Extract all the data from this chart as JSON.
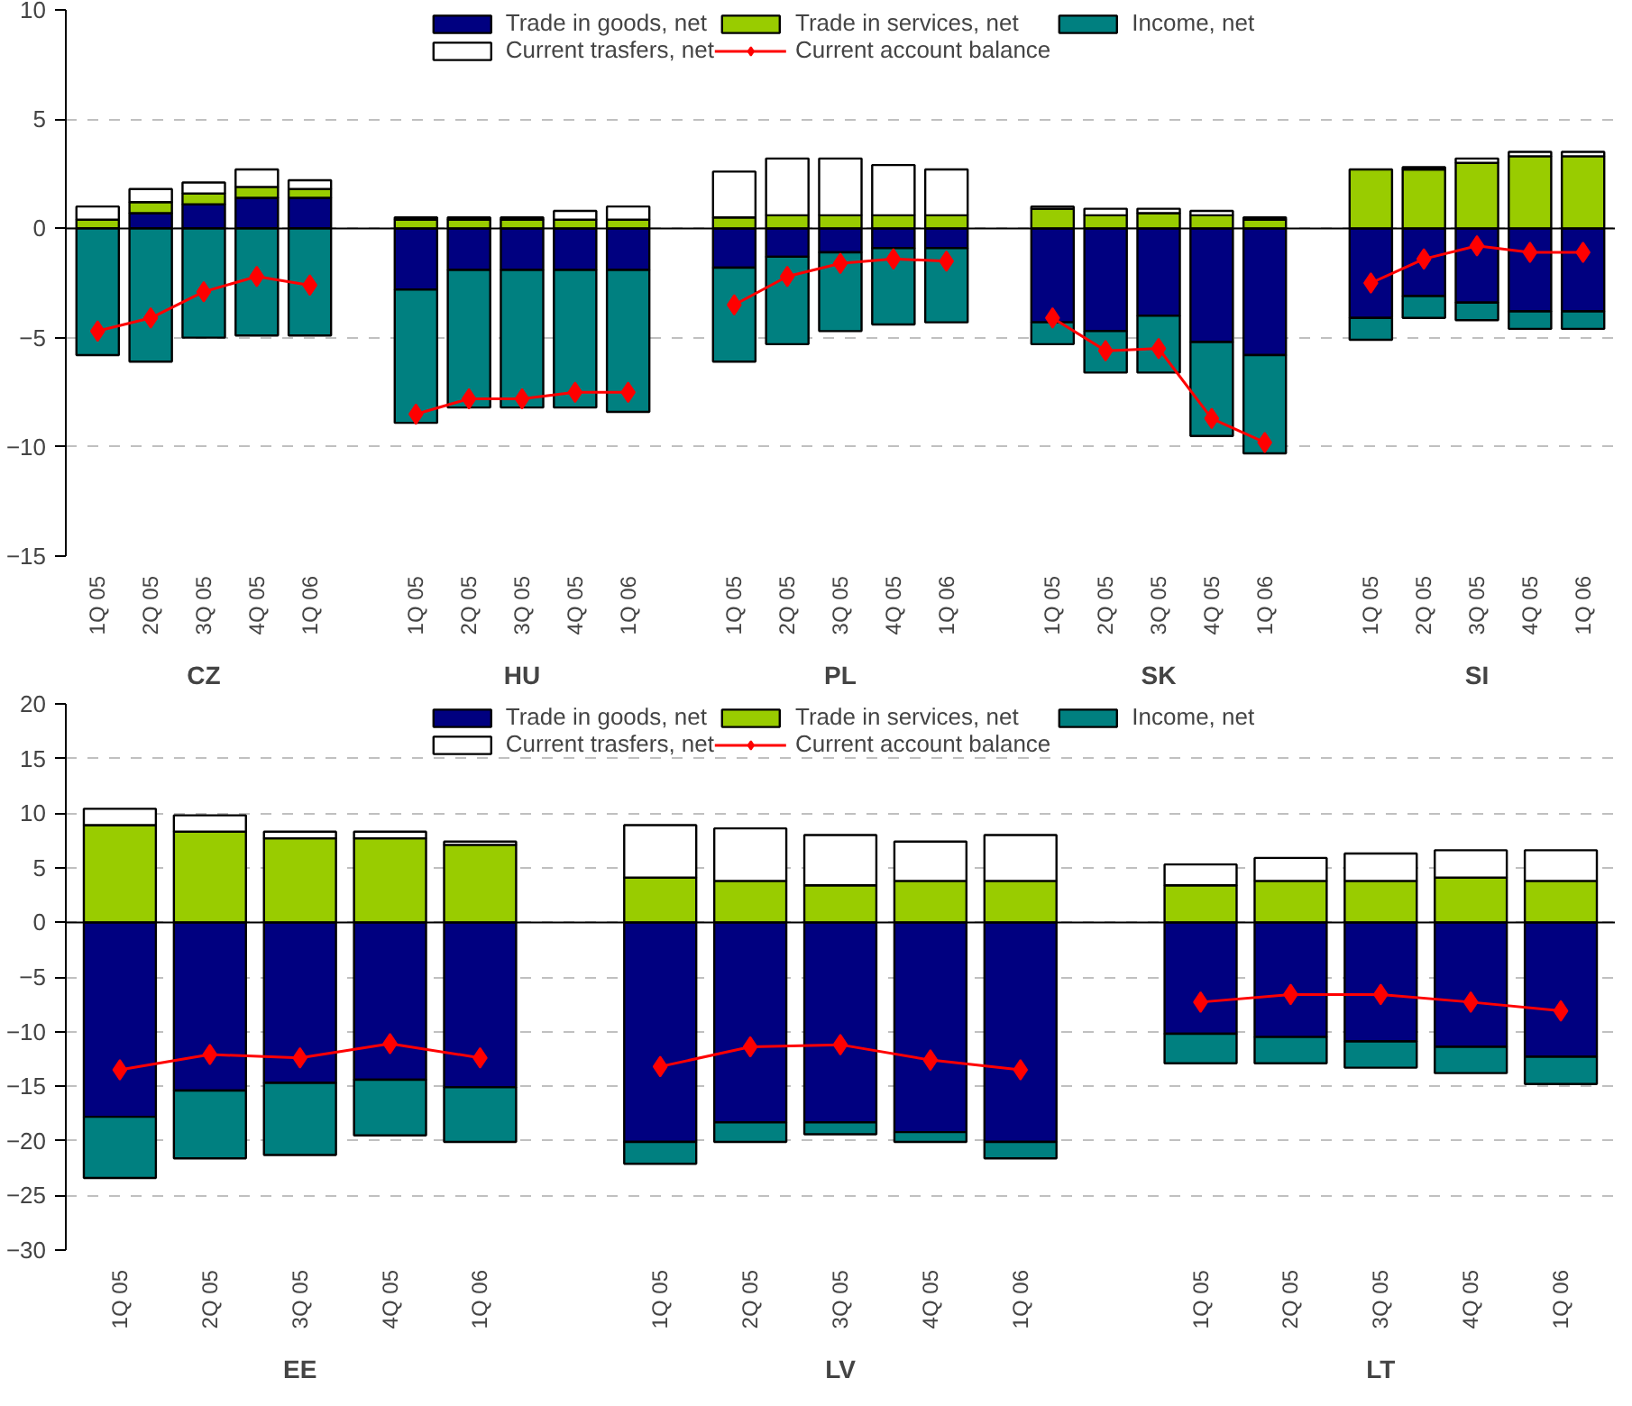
{
  "chart_data": [
    {
      "type": "bar",
      "stacked": true,
      "categories": [
        "1Q 05",
        "2Q 05",
        "3Q 05",
        "4Q 05",
        "1Q 06",
        null,
        "1Q 05",
        "2Q 05",
        "3Q 05",
        "4Q 05",
        "1Q 06",
        null,
        "1Q 05",
        "2Q 05",
        "3Q 05",
        "4Q 05",
        "1Q 06",
        null,
        "1Q 05",
        "2Q 05",
        "3Q 05",
        "4Q 05",
        "1Q 06",
        null,
        "1Q 05",
        "2Q 05",
        "3Q 05",
        "4Q 05",
        "1Q 06"
      ],
      "annotations": [
        "CZ",
        "HU",
        "PL",
        "SK",
        "SI"
      ],
      "ylim": [
        -15,
        10
      ],
      "yticks": [
        -15,
        -10,
        -5,
        0,
        5,
        10
      ],
      "grid": "y",
      "legend": "top",
      "series": [
        {
          "name": "Trade in goods, net",
          "color": "#000080",
          "values": [
            null,
            0.7,
            1.1,
            1.4,
            1.4,
            null,
            -2.8,
            -1.9,
            -1.9,
            -1.9,
            -1.9,
            null,
            -1.8,
            -1.3,
            -1.1,
            -0.9,
            -0.9,
            null,
            -4.3,
            -4.7,
            -4.0,
            -5.2,
            -5.8,
            null,
            -4.1,
            -3.1,
            -3.4,
            -3.8,
            -3.8
          ]
        },
        {
          "name": "Trade in services, net",
          "color": "#99cc00",
          "values": [
            0.4,
            0.5,
            0.5,
            0.5,
            0.4,
            null,
            0.4,
            0.4,
            0.4,
            0.4,
            0.4,
            null,
            0.5,
            0.6,
            0.6,
            0.6,
            0.6,
            null,
            0.9,
            0.6,
            0.7,
            0.6,
            0.4,
            null,
            2.7,
            2.7,
            3.0,
            3.3,
            3.3
          ]
        },
        {
          "name": "Income, net",
          "color": "#008080",
          "values": [
            -5.8,
            -6.1,
            -5.0,
            -4.9,
            -4.9,
            null,
            -6.1,
            -6.3,
            -6.3,
            -6.3,
            -6.5,
            null,
            -4.3,
            -4.0,
            -3.6,
            -3.5,
            -3.4,
            null,
            -1.0,
            -1.9,
            -2.6,
            -4.3,
            -4.5,
            null,
            -1.0,
            -1.0,
            -0.8,
            -0.8,
            -0.8
          ]
        },
        {
          "name": "Current trasfers, net",
          "color": "#ffffff",
          "values": [
            0.6,
            0.6,
            0.5,
            0.8,
            0.4,
            null,
            0.1,
            0.1,
            0.1,
            0.4,
            0.6,
            null,
            2.1,
            2.6,
            2.6,
            2.3,
            2.1,
            null,
            0.1,
            0.3,
            0.2,
            0.2,
            0.1,
            null,
            null,
            0.1,
            0.2,
            0.2,
            0.2
          ]
        },
        {
          "name": "Current account balance",
          "color": "#ff0000",
          "type": "line",
          "marker": "diamond",
          "values": [
            -4.7,
            -4.1,
            -2.9,
            -2.2,
            -2.6,
            null,
            -8.5,
            -7.8,
            -7.8,
            -7.5,
            -7.5,
            null,
            -3.5,
            -2.2,
            -1.6,
            -1.4,
            -1.5,
            null,
            -4.1,
            -5.6,
            -5.5,
            -8.7,
            -9.8,
            null,
            -2.5,
            -1.4,
            -0.8,
            -1.1,
            -1.1
          ]
        }
      ]
    },
    {
      "type": "bar",
      "stacked": true,
      "categories": [
        "1Q 05",
        "2Q 05",
        "3Q 05",
        "4Q 05",
        "1Q 06",
        null,
        "1Q 05",
        "2Q 05",
        "3Q 05",
        "4Q 05",
        "1Q 06",
        null,
        "1Q 05",
        "2Q 05",
        "3Q 05",
        "4Q 05",
        "1Q 06"
      ],
      "annotations": [
        "EE",
        "LV",
        "LT"
      ],
      "ylim": [
        -30,
        20
      ],
      "yticks": [
        -30,
        -25,
        -20,
        -15,
        -10,
        -5,
        0,
        5,
        10,
        15,
        20
      ],
      "grid": "y",
      "legend": "top",
      "series": [
        {
          "name": "Trade in goods, net",
          "color": "#000080",
          "values": [
            -17.8,
            -15.4,
            -14.7,
            -14.4,
            -15.1,
            null,
            -20.1,
            -18.3,
            -18.3,
            -19.2,
            -20.1,
            null,
            -10.2,
            -10.5,
            -10.9,
            -11.4,
            -12.3
          ]
        },
        {
          "name": "Trade in services, net",
          "color": "#99cc00",
          "values": [
            8.9,
            8.3,
            7.7,
            7.7,
            7.1,
            null,
            4.1,
            3.8,
            3.4,
            3.8,
            3.8,
            null,
            3.4,
            3.8,
            3.8,
            4.1,
            3.8
          ]
        },
        {
          "name": "Income, net",
          "color": "#008080",
          "values": [
            -5.6,
            -6.2,
            -6.6,
            -5.1,
            -5.0,
            null,
            -2.0,
            -1.8,
            -1.1,
            -0.9,
            -1.5,
            null,
            -2.7,
            -2.4,
            -2.4,
            -2.4,
            -2.5
          ]
        },
        {
          "name": "Current trasfers, net",
          "color": "#ffffff",
          "values": [
            1.5,
            1.5,
            0.6,
            0.6,
            0.3,
            null,
            4.8,
            4.8,
            4.6,
            3.6,
            4.2,
            null,
            1.9,
            2.1,
            2.5,
            2.5,
            2.8
          ]
        },
        {
          "name": "Current account balance",
          "color": "#ff0000",
          "type": "line",
          "marker": "diamond",
          "values": [
            -13.5,
            -12.1,
            -12.4,
            -11.1,
            -12.4,
            null,
            -13.2,
            -11.4,
            -11.2,
            -12.6,
            -13.5,
            null,
            -7.3,
            -6.6,
            -6.6,
            -7.3,
            -8.1
          ]
        }
      ]
    }
  ]
}
